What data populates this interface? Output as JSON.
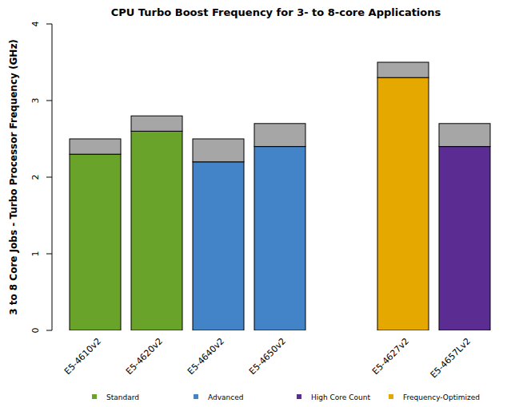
{
  "chart_data": {
    "type": "bar",
    "title": "CPU Turbo Boost Frequency for 3- to 8-core Applications",
    "y_label": "3 to 8 Core Jobs - Turbo Processor Frequency (GHz)",
    "categories": [
      "E5-4610v2",
      "E5-4620v2",
      "E5-4640v2",
      "E5-4650v2",
      null,
      "E5-4627v2",
      "E5-4657Lv2"
    ],
    "stacked": true,
    "series": [
      {
        "values": [
          2.3,
          2.6,
          2.2,
          2.4,
          null,
          3.3,
          2.4
        ],
        "colors": [
          "#6aa329",
          "#6aa329",
          "#4383c7",
          "#4383c7",
          null,
          "#e5a800",
          "#5b2c91"
        ]
      },
      {
        "values": [
          0.2,
          0.2,
          0.3,
          0.3,
          null,
          0.2,
          0.3
        ],
        "color": "#a6a6a6"
      }
    ],
    "legend_entries": [
      {
        "name": "Standard",
        "color": "#6aa329"
      },
      {
        "name": "Advanced",
        "color": "#4383c7"
      },
      {
        "name": "High Core Count",
        "color": "#5b2c91"
      },
      {
        "name": "Frequency-Optimized",
        "color": "#e5a800"
      }
    ],
    "ylim": [
      0,
      4
    ],
    "yticks": [
      0,
      1,
      2,
      3,
      4
    ],
    "grid": false
  }
}
